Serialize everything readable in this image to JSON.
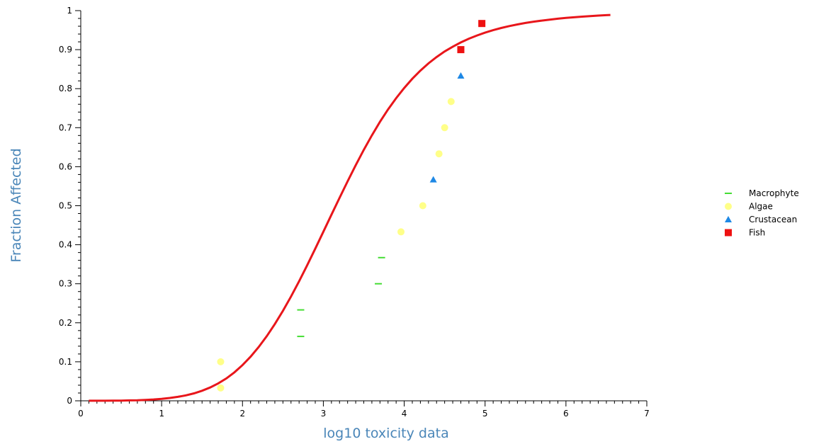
{
  "chart_data": {
    "type": "scatter",
    "xlabel": "log10 toxicity data",
    "ylabel": "Fraction Affected",
    "xlim": [
      0,
      7
    ],
    "ylim": [
      0,
      1
    ],
    "x_ticks": [
      "0",
      "1",
      "2",
      "3",
      "4",
      "5",
      "6",
      "7"
    ],
    "y_ticks": [
      "0",
      "0.1",
      "0.2",
      "0.3",
      "0.4",
      "0.5",
      "0.6",
      "0.7",
      "0.8",
      "0.9",
      "1"
    ],
    "grid": false,
    "legend_position": "right",
    "fit_curve": {
      "color": "#e8161b",
      "x_range": [
        0.1,
        6.55
      ],
      "x": [
        0.1,
        0.2,
        0.3,
        0.4,
        0.5,
        0.6,
        0.7,
        0.8,
        0.9,
        1.0,
        1.1,
        1.2,
        1.3,
        1.4,
        1.5,
        1.6,
        1.7,
        1.8,
        1.9,
        2.0,
        2.1,
        2.2,
        2.3,
        2.4,
        2.5,
        2.6,
        2.7,
        2.8,
        2.9,
        3.0,
        3.1,
        3.2,
        3.3,
        3.4,
        3.5,
        3.6,
        3.7,
        3.8,
        3.9,
        4.0,
        4.1,
        4.2,
        4.3,
        4.4,
        4.5,
        4.6,
        4.7,
        4.8,
        4.9,
        5.0,
        5.1,
        5.2,
        5.3,
        5.4,
        5.5,
        5.6,
        5.7,
        5.8,
        5.9,
        6.0,
        6.1,
        6.2,
        6.3,
        6.4,
        6.5,
        6.55
      ],
      "y": [
        0.0001,
        0.0001,
        0.0002,
        0.0004,
        0.0006,
        0.001,
        0.0015,
        0.0023,
        0.0034,
        0.005,
        0.0072,
        0.0101,
        0.014,
        0.0191,
        0.0258,
        0.0342,
        0.0446,
        0.0574,
        0.073,
        0.0915,
        0.113,
        0.1377,
        0.1656,
        0.1966,
        0.2306,
        0.2673,
        0.3064,
        0.3474,
        0.3898,
        0.4332,
        0.4768,
        0.5202,
        0.5627,
        0.6039,
        0.6432,
        0.6803,
        0.7149,
        0.7467,
        0.7757,
        0.8019,
        0.8254,
        0.8463,
        0.8648,
        0.881,
        0.8952,
        0.9077,
        0.9186,
        0.9281,
        0.9363,
        0.9436,
        0.95,
        0.9555,
        0.9604,
        0.9646,
        0.9684,
        0.9716,
        0.9745,
        0.977,
        0.9793,
        0.9813,
        0.983,
        0.9846,
        0.986,
        0.9873,
        0.9884,
        0.9889
      ]
    },
    "series": [
      {
        "name": "Macrophyte",
        "marker": "dash",
        "color": "#44dd33",
        "points": [
          [
            2.72,
            0.165
          ],
          [
            2.72,
            0.233
          ],
          [
            3.68,
            0.3
          ],
          [
            3.72,
            0.367
          ]
        ]
      },
      {
        "name": "Algae",
        "marker": "circle",
        "color": "#ffff88",
        "points": [
          [
            1.73,
            0.033
          ],
          [
            1.73,
            0.1
          ],
          [
            3.96,
            0.433
          ],
          [
            4.23,
            0.5
          ],
          [
            4.43,
            0.633
          ],
          [
            4.5,
            0.7
          ],
          [
            4.58,
            0.767
          ]
        ]
      },
      {
        "name": "Crustacean",
        "marker": "triangle",
        "color": "#1e88e5",
        "points": [
          [
            4.36,
            0.567
          ],
          [
            4.7,
            0.833
          ]
        ]
      },
      {
        "name": "Fish",
        "marker": "square",
        "color": "#ee1111",
        "points": [
          [
            4.7,
            0.9
          ],
          [
            4.96,
            0.967
          ]
        ]
      }
    ]
  }
}
